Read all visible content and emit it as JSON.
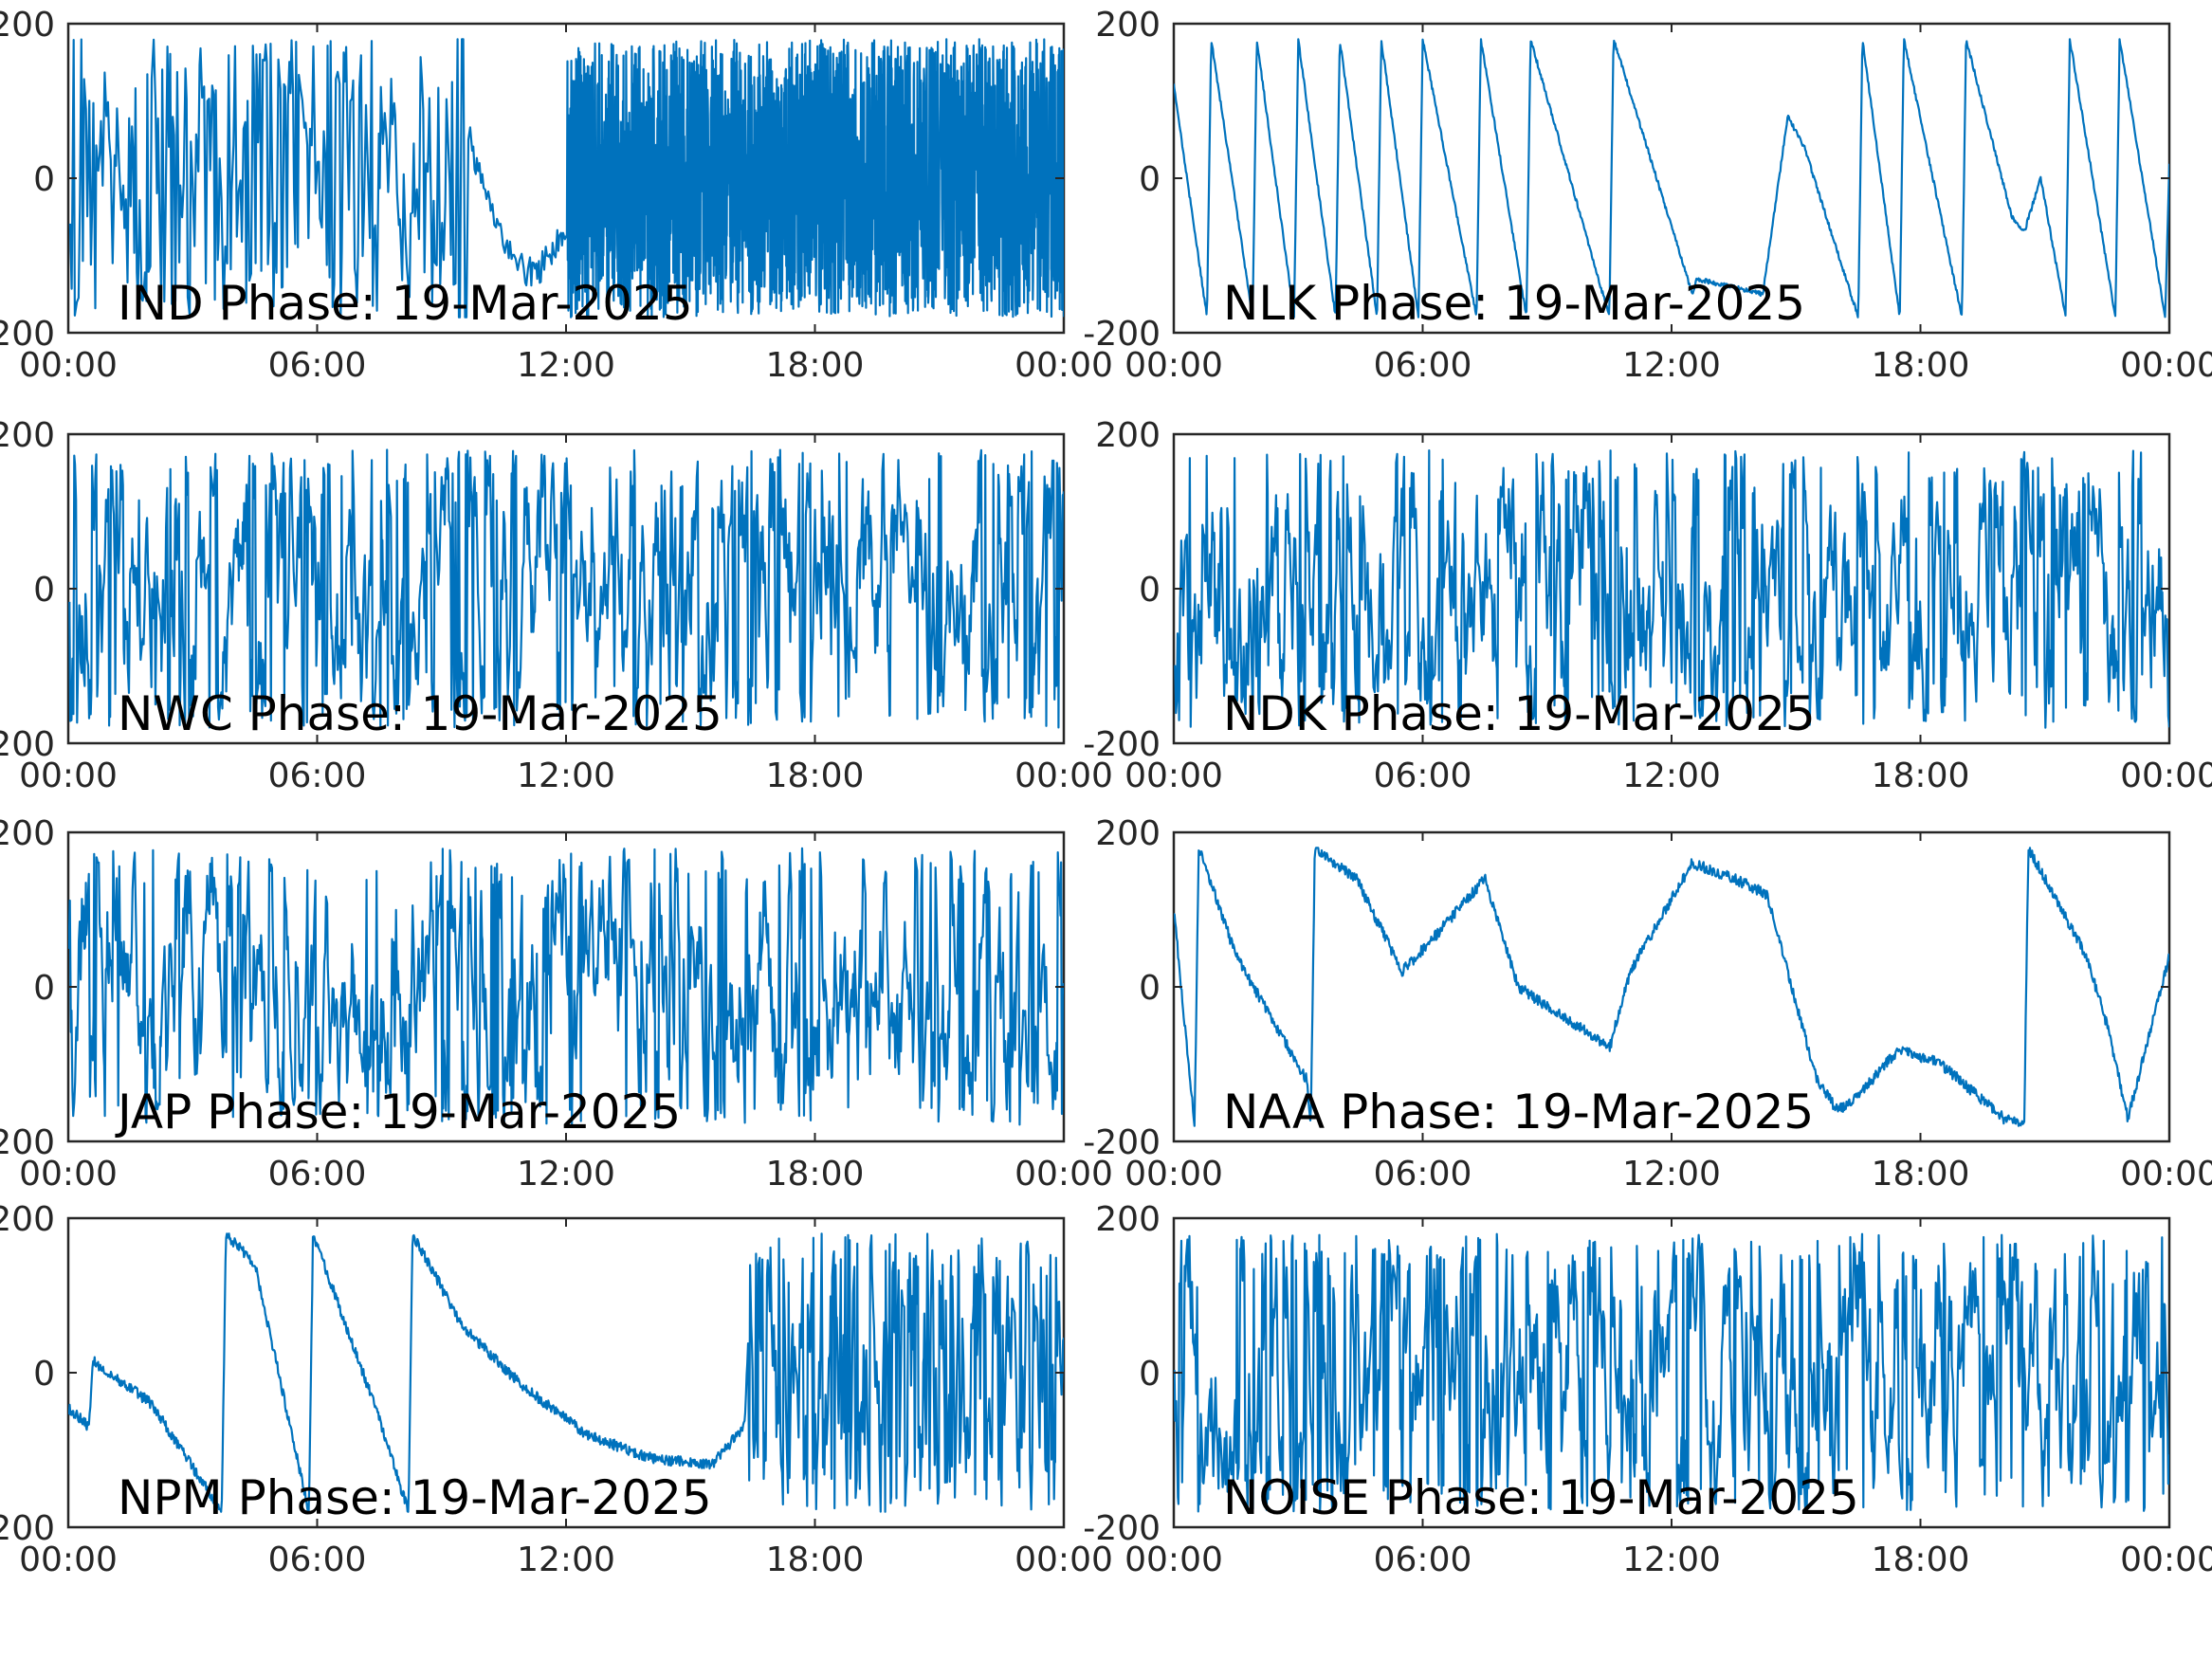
{
  "figure": {
    "background": "#ffffff",
    "line_color": "#0072BD",
    "axis_color": "#262626"
  },
  "chart_data": [
    {
      "type": "line",
      "title": "IND Phase: 19-Mar-2025",
      "x_ticks": [
        "00:00",
        "06:00",
        "12:00",
        "18:00",
        "00:00"
      ],
      "xlim": [
        0,
        24
      ],
      "y_ticks": [
        "-200",
        "0",
        "200"
      ],
      "ylim": [
        -200,
        200
      ],
      "pattern": "dense_wraps",
      "series": [
        {
          "x": [
            0,
            9.3,
            9.5,
            10.5,
            12,
            24
          ],
          "y": [
            -180,
            180,
            -180,
            130,
            -180,
            180
          ]
        }
      ]
    },
    {
      "type": "line",
      "title": "NLK Phase: 19-Mar-2025",
      "x_ticks": [
        "00:00",
        "06:00",
        "12:00",
        "18:00",
        "00:00"
      ],
      "xlim": [
        0,
        24
      ],
      "y_ticks": [
        "-200",
        "0",
        "200"
      ],
      "ylim": [
        -200,
        200
      ],
      "pattern": "sawtooth",
      "series": [
        {
          "x": [
            0,
            0.8,
            0.9,
            1.9,
            2.0,
            2.9,
            3.0,
            3.9,
            4.0,
            4.9,
            5.0,
            5.9,
            6.0,
            7.3,
            7.4,
            8.5,
            8.6,
            10.5,
            10.6,
            12.5,
            12.6,
            14.2,
            14.8,
            15.2,
            16.5,
            16.6,
            17.5,
            17.6,
            19.0,
            19.1,
            20.2,
            20.5,
            20.9,
            21.5,
            21.6,
            22.7,
            22.8,
            23.9,
            24
          ],
          "y": [
            120,
            -180,
            180,
            -180,
            180,
            -180,
            180,
            -180,
            180,
            -180,
            180,
            -180,
            180,
            -180,
            180,
            -180,
            180,
            -180,
            180,
            -150,
            -130,
            -150,
            80,
            40,
            -180,
            180,
            -180,
            180,
            -180,
            180,
            -50,
            -70,
            0,
            -180,
            180,
            -180,
            180,
            -180,
            20
          ]
        }
      ]
    },
    {
      "type": "line",
      "title": "NWC Phase: 19-Mar-2025",
      "x_ticks": [
        "00:00",
        "06:00",
        "12:00",
        "18:00",
        "00:00"
      ],
      "xlim": [
        0,
        24
      ],
      "y_ticks": [
        "-200",
        "0",
        "200"
      ],
      "ylim": [
        -200,
        200
      ],
      "pattern": "noisy_wraps",
      "series": [
        {
          "x": [
            0,
            6,
            12,
            18,
            24
          ],
          "y": [
            100,
            0,
            -60,
            40,
            0
          ]
        }
      ]
    },
    {
      "type": "line",
      "title": "NDK Phase: 19-Mar-2025",
      "x_ticks": [
        "00:00",
        "06:00",
        "12:00",
        "18:00",
        "00:00"
      ],
      "xlim": [
        0,
        24
      ],
      "y_ticks": [
        "-200",
        "0",
        "200"
      ],
      "ylim": [
        -200,
        200
      ],
      "pattern": "noisy_wraps",
      "series": [
        {
          "x": [
            0,
            6,
            12,
            18,
            24
          ],
          "y": [
            -40,
            -20,
            20,
            0,
            60
          ]
        }
      ]
    },
    {
      "type": "line",
      "title": "JAP Phase: 19-Mar-2025",
      "x_ticks": [
        "00:00",
        "06:00",
        "12:00",
        "18:00",
        "00:00"
      ],
      "xlim": [
        0,
        24
      ],
      "y_ticks": [
        "-200",
        "0",
        "200"
      ],
      "ylim": [
        -200,
        200
      ],
      "pattern": "noisy_wraps",
      "series": [
        {
          "x": [
            0,
            6,
            12,
            18,
            24
          ],
          "y": [
            60,
            -40,
            0,
            20,
            -20
          ]
        }
      ]
    },
    {
      "type": "line",
      "title": "NAA Phase: 19-Mar-2025",
      "x_ticks": [
        "00:00",
        "06:00",
        "12:00",
        "18:00",
        "00:00"
      ],
      "xlim": [
        0,
        24
      ],
      "y_ticks": [
        "-200",
        "0",
        "200"
      ],
      "ylim": [
        -200,
        200
      ],
      "pattern": "drift",
      "series": [
        {
          "x": [
            0,
            0.5,
            0.6,
            1.5,
            3.2,
            3.3,
            3.4,
            4.4,
            5.5,
            6.2,
            7.5,
            8.3,
            10.0,
            10.5,
            11.0,
            12.5,
            13.5,
            14.3,
            15.5,
            16.0,
            16.5,
            17.5,
            18.5,
            20.0,
            20.5,
            20.6,
            22.0,
            22.5,
            23.0,
            24
          ],
          "y": [
            100,
            -180,
            180,
            40,
            -120,
            -180,
            180,
            140,
            20,
            60,
            140,
            0,
            -60,
            -80,
            20,
            160,
            140,
            120,
            -120,
            -160,
            -140,
            -80,
            -100,
            -170,
            -180,
            180,
            40,
            -50,
            -170,
            40
          ]
        }
      ]
    },
    {
      "type": "line",
      "title": "NPM Phase: 19-Mar-2025",
      "x_ticks": [
        "00:00",
        "06:00",
        "12:00",
        "18:00",
        "00:00"
      ],
      "xlim": [
        0,
        24
      ],
      "y_ticks": [
        "-200",
        "0",
        "200"
      ],
      "ylim": [
        -200,
        200
      ],
      "pattern": "drift_then_wraps",
      "series": [
        {
          "x": [
            0,
            0.5,
            0.6,
            2.0,
            3.7,
            3.8,
            4.5,
            5.8,
            5.9,
            7.5,
            8.2,
            8.3,
            9.5,
            11.0,
            12.5,
            14.0,
            15.5,
            16.3,
            16.5,
            18.0,
            20.0,
            22.0,
            24
          ],
          "y": [
            -45,
            -70,
            15,
            -40,
            -180,
            180,
            140,
            -180,
            180,
            -60,
            -180,
            180,
            60,
            -20,
            -80,
            -110,
            -120,
            -70,
            180,
            -180,
            100,
            -60,
            0
          ]
        }
      ]
    },
    {
      "type": "line",
      "title": "NOISE Phase: 19-Mar-2025",
      "x_ticks": [
        "00:00",
        "06:00",
        "12:00",
        "18:00",
        "00:00"
      ],
      "xlim": [
        0,
        24
      ],
      "y_ticks": [
        "-200",
        "0",
        "200"
      ],
      "ylim": [
        -200,
        200
      ],
      "pattern": "noisy_wraps",
      "series": [
        {
          "x": [
            0,
            6,
            11,
            12,
            18,
            24
          ],
          "y": [
            40,
            0,
            -100,
            -120,
            0,
            20
          ]
        }
      ]
    }
  ]
}
